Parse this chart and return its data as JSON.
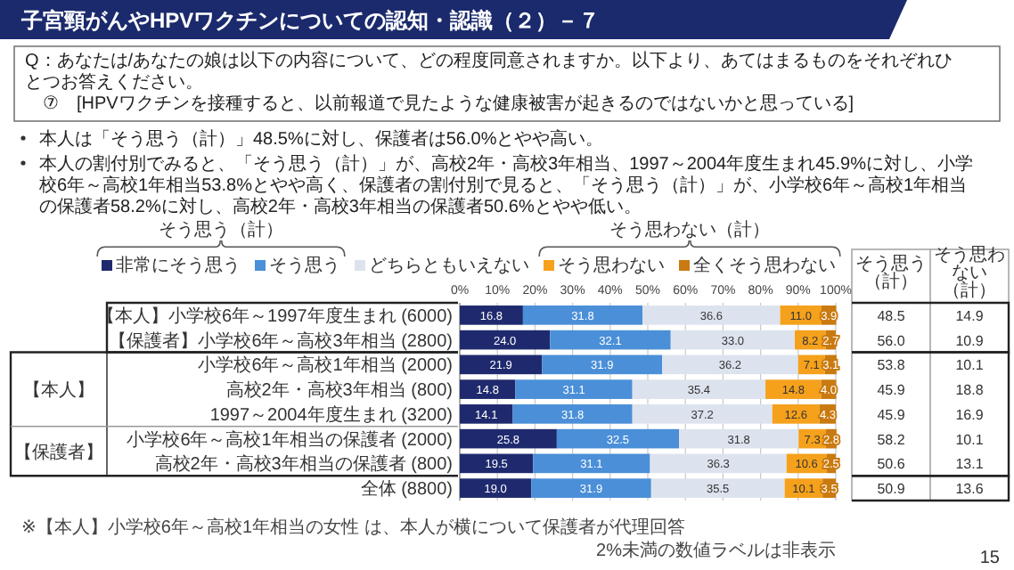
{
  "chart_data": {
    "type": "bar",
    "orientation": "horizontal",
    "stacked": true,
    "title": "子宮頸がんやHPVワクチンについての認知・認識（２）－７",
    "categories": [
      "【本人】小学校6年～1997年度生まれ (6000)",
      "【保護者】小学校6年～高校3年相当 (2800)",
      "小学校6年～高校1年相当 (2000)",
      "高校2年・高校3年相当 (800)",
      "1997～2004年度生まれ (3200)",
      "小学校6年～高校1年相当の保護者 (2000)",
      "高校2年・高校3年相当の保護者 (800)",
      "全体 (8800)"
    ],
    "series": [
      {
        "name": "非常にそう思う",
        "color": "#1f2a6e",
        "values": [
          16.8,
          24.0,
          21.9,
          14.8,
          14.1,
          25.8,
          19.5,
          19.0
        ],
        "value_labels": [
          "16.8",
          "24.0",
          "21.9",
          "14.8",
          "14.1",
          "25.8",
          "19.5",
          "19.0"
        ]
      },
      {
        "name": "そう思う",
        "color": "#4a8fd8",
        "values": [
          31.8,
          32.1,
          31.9,
          31.1,
          31.8,
          32.5,
          31.1,
          31.9
        ],
        "value_labels": [
          "31.8",
          "32.1",
          "31.9",
          "31.1",
          "31.8",
          "32.5",
          "31.1",
          "31.9"
        ]
      },
      {
        "name": "どちらともいえない",
        "color": "#dde3ee",
        "values": [
          36.6,
          33.0,
          36.2,
          35.4,
          37.2,
          31.8,
          36.3,
          35.5
        ],
        "value_labels": [
          "36.6",
          "33.0",
          "36.2",
          "35.4",
          "37.2",
          "31.8",
          "36.3",
          "35.5"
        ]
      },
      {
        "name": "そう思わない",
        "color": "#f5a11c",
        "values": [
          11.0,
          8.2,
          7.1,
          14.8,
          12.6,
          7.3,
          10.6,
          10.1
        ],
        "value_labels": [
          "11.0",
          "8.2",
          "7.1",
          "14.8",
          "12.6",
          "7.3",
          "10.6",
          "10.1"
        ]
      },
      {
        "name": "全くそう思わない",
        "color": "#c97a10",
        "values": [
          3.9,
          2.7,
          3.1,
          4.0,
          4.3,
          2.8,
          2.5,
          3.5
        ],
        "value_labels": [
          "3.9",
          "2.7",
          "3.1",
          "4.0",
          "4.3",
          "2.8",
          "2.5",
          "3.5"
        ]
      }
    ],
    "xlim": [
      0,
      100
    ],
    "xticks": [
      {
        "value": 0,
        "label": "0%"
      },
      {
        "value": 10,
        "label": "10%"
      },
      {
        "value": 20,
        "label": "20%"
      },
      {
        "value": 30,
        "label": "30%"
      },
      {
        "value": 40,
        "label": "40%"
      },
      {
        "value": 50,
        "label": "50%"
      },
      {
        "value": 60,
        "label": "60%"
      },
      {
        "value": 70,
        "label": "70%"
      },
      {
        "value": 80,
        "label": "80%"
      },
      {
        "value": 90,
        "label": "90%"
      },
      {
        "value": 100,
        "label": "100%"
      }
    ],
    "grid": "x",
    "legend": "top",
    "annotations": [
      "Q：あなたは/あなたの娘は以下の内容について、どの程度同意されますか。以下より、あてはまるものをそれぞれひとつお答えください。",
      "⑦　[HPVワクチンを接種すると、以前報道で見たような健康被害が起きるのではないかと思っている]",
      "本人は「そう思う（計）」48.5%に対し、保護者は56.0%とやや高い。",
      "本人の割付別でみると、「そう思う（計）」が、高校2年・高校3年相当、1997～2004年度生まれ45.9%に対し、小学校6年～高校1年相当53.8%とやや高く、保護者の割付別で見ると、「そう思う（計）」が、小学校6年～高校1年相当の保護者58.2%に対し、高校2年・高校3年相当の保護者50.6%とやや低い。",
      "そう思う（計）",
      "そう思わない（計）",
      "そう思う（計）",
      "そう思わない（計）",
      "【本人】",
      "【保護者】",
      "※【本人】小学校6年～高校1年相当の女性 は、本人が横について保護者が代理回答",
      "2%未満の数値ラベルは非表示",
      "15",
      "48.5",
      "14.9",
      "56.0",
      "10.9",
      "53.8",
      "10.1",
      "45.9",
      "18.8",
      "45.9",
      "16.9",
      "58.2",
      "10.1",
      "50.6",
      "13.1",
      "50.9",
      "13.6"
    ]
  }
}
